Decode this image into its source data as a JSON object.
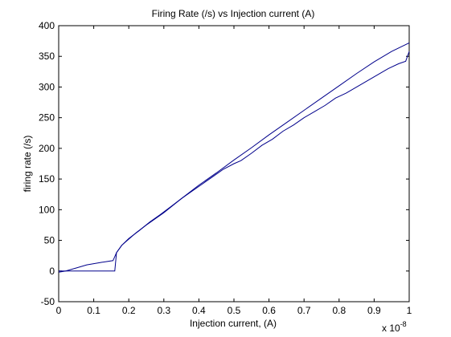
{
  "chart_data": {
    "type": "line",
    "title": "Firing Rate (/s) vs Injection current (A)",
    "xlabel": "Injection current, (A)",
    "ylabel": "firing rate (/s)",
    "x_exponent_label": "x 10",
    "x_exponent_power": "-8",
    "xlim": [
      0,
      1
    ],
    "ylim": [
      -50,
      400
    ],
    "x_scale_factor": 1e-08,
    "grid": false,
    "line_color": "#00008b",
    "xticks": [
      0,
      0.1,
      0.2,
      0.3,
      0.4,
      0.5,
      0.6,
      0.7,
      0.8,
      0.9,
      1
    ],
    "xtick_labels": [
      "0",
      "0.1",
      "0.2",
      "0.3",
      "0.4",
      "0.5",
      "0.6",
      "0.7",
      "0.8",
      "0.9",
      "1"
    ],
    "yticks": [
      -50,
      0,
      50,
      100,
      150,
      200,
      250,
      300,
      350,
      400
    ],
    "ytick_labels": [
      "-50",
      "0",
      "50",
      "100",
      "150",
      "200",
      "250",
      "300",
      "350",
      "400"
    ],
    "series": [
      {
        "x": [
          0,
          0.16,
          0.165,
          0.18,
          0.2,
          0.22,
          0.25,
          0.3,
          0.35,
          0.4,
          0.45,
          0.5,
          0.55,
          0.6,
          0.65,
          0.7,
          0.75,
          0.8,
          0.85,
          0.9,
          0.95,
          1.0
        ],
        "values": [
          0,
          0,
          30,
          42,
          52,
          62,
          75,
          95,
          118,
          140,
          160,
          181,
          201,
          222,
          242,
          262,
          282,
          302,
          322,
          341,
          358,
          372
        ]
      },
      {
        "x": [
          0,
          0.02,
          0.05,
          0.08,
          0.1,
          0.12,
          0.155,
          0.165,
          0.18,
          0.2,
          0.23,
          0.26,
          0.29,
          0.32,
          0.35,
          0.38,
          0.41,
          0.44,
          0.47,
          0.5,
          0.52,
          0.55,
          0.58,
          0.61,
          0.64,
          0.67,
          0.7,
          0.73,
          0.76,
          0.79,
          0.82,
          0.85,
          0.88,
          0.91,
          0.94,
          0.97,
          0.99,
          1.0
        ],
        "values": [
          -2,
          0,
          5,
          10,
          12,
          14,
          17,
          30,
          42,
          53,
          66,
          80,
          92,
          105,
          118,
          130,
          142,
          154,
          166,
          175,
          180,
          192,
          205,
          215,
          228,
          238,
          250,
          260,
          270,
          282,
          290,
          300,
          310,
          320,
          330,
          338,
          342,
          358
        ]
      }
    ]
  }
}
